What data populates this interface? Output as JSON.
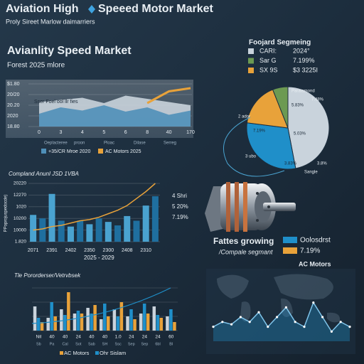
{
  "header": {
    "title": "Aviation High",
    "title_2": "Speeed Motor Market",
    "subtitle": "Proly Sireet Marlow daimarriers"
  },
  "section": {
    "title": "Avianlity Speed Market",
    "subtitle": "Forest 2025 mlore"
  },
  "segment": {
    "title": "Fattes growing",
    "subtitle": "/Compale segmant",
    "legend": [
      {
        "label": "Oolosdrst",
        "color": "#1f8fc9"
      },
      {
        "label": "7.19%",
        "color": "#e8a23a"
      }
    ],
    "note": "AC Motors"
  },
  "chart_data": [
    {
      "type": "area",
      "annotation": "Sser Foel ool llr fies",
      "categories": [
        "0",
        "3",
        "4",
        "5",
        "6",
        "8",
        "40",
        "170"
      ],
      "sublabels": [
        "Oeplacteree",
        "proon",
        "Ploac",
        "Dilase",
        "Serreg"
      ],
      "series": [
        {
          "type": "area",
          "color": "#c9d3dc",
          "values": [
            2.3,
            2.5,
            2.7,
            2.2,
            2.9,
            2.6,
            2.3,
            2.0
          ]
        },
        {
          "type": "area",
          "name": "+35/CR Mroe 2020",
          "color": "#4f8fb8",
          "values": [
            1.2,
            1.8,
            1.5,
            2.0,
            1.4,
            1.8,
            1.1,
            1.5
          ]
        },
        {
          "type": "line",
          "name": "AC Motors 2025",
          "color": "#e8a23a",
          "values": [
            null,
            null,
            null,
            null,
            null,
            2.2,
            3.3,
            3.6
          ]
        }
      ],
      "ylim": [
        0,
        4
      ],
      "yticks": [
        {
          "value": 0,
          "label": "18.80"
        },
        {
          "value": 1,
          "label": "2020"
        },
        {
          "value": 2,
          "label": "20.20"
        },
        {
          "value": 3,
          "label": "20/20"
        },
        {
          "value": 4,
          "label": "$1.80"
        }
      ]
    },
    {
      "type": "pie",
      "title": "Foojard Segmeing",
      "legend": [
        {
          "label": "CARI:",
          "value_text": "2024°",
          "color": "#c9d3dc"
        },
        {
          "label": "Sar G",
          "value_text": "7.199%",
          "color": "#6c9a52"
        },
        {
          "label": "SX 9S",
          "value_text": "$3 3225I",
          "color": "#e8a23a"
        }
      ],
      "values": [
        47,
        30,
        17,
        6
      ],
      "colors": [
        "#c9d3dc",
        "#1f8fc9",
        "#e8a23a",
        "#6c9a52"
      ],
      "annotations": [
        "Paratamond",
        "7.48%",
        "5.83%",
        "5.03%",
        "7.19%",
        "3.83%",
        "3.8%",
        "2 ador",
        "3 ubo",
        "Sangle"
      ]
    },
    {
      "type": "bar_line",
      "title": "Compland Anunl JSD 1VBA",
      "ylabel": "PPoprojuspedocde)",
      "xsub": "2025 - 2029",
      "categories": [
        "2071",
        null,
        "2391",
        null,
        "2402",
        null,
        "2350",
        null,
        "2300",
        null,
        "2408",
        null,
        "2310",
        null
      ],
      "values": [
        2.3,
        2.0,
        4.1,
        1.8,
        1.3,
        1.8,
        1.5,
        2.0,
        1.7,
        1.4,
        2.2,
        1.8,
        3.1,
        3.9
      ],
      "colors": [
        "#4aa3d0",
        "#1f6f9f"
      ],
      "line": {
        "color": "#e8a23a",
        "values": [
          1.0,
          1.1,
          1.3,
          1.4,
          1.6,
          1.8,
          1.9,
          2.1,
          2.4,
          2.7,
          3.1,
          3.7,
          4.3,
          5.0
        ]
      },
      "notes": [
        "4 Shri",
        "5 20%",
        "7.19%"
      ],
      "ylim": [
        0,
        5
      ],
      "yticks": [
        {
          "value": 0,
          "label": "1.820"
        },
        {
          "value": 1,
          "label": "10000"
        },
        {
          "value": 2,
          "label": "10200"
        },
        {
          "value": 3,
          "label": "1020"
        },
        {
          "value": 4,
          "label": "12270"
        },
        {
          "value": 5,
          "label": "20220"
        }
      ],
      "grid": true
    },
    {
      "type": "grouped_bar",
      "title": "Tle Pororderser/Vetrvbsek",
      "categories": [
        "Nil",
        "40",
        "40",
        "24",
        "40",
        "40",
        "1.0",
        "24",
        "24",
        "24",
        "60"
      ],
      "sublabels": [
        "Sb",
        "Pa",
        "Cal",
        "Sot",
        "Sab",
        "SH",
        "Ssc",
        "Sep",
        "Sep",
        "6bl",
        "Bl"
      ],
      "series": [
        {
          "color": "#c9d3dc",
          "values": [
            1.7,
            0.9,
            1.5,
            1.2,
            1.6,
            0.8,
            1.5,
            1.0,
            1.2,
            1.7,
            1.0
          ]
        },
        {
          "name": "Ohr Sislam",
          "color": "#1f8fc9",
          "values": [
            0.9,
            2.0,
            1.1,
            1.4,
            1.2,
            1.9,
            1.0,
            1.5,
            1.9,
            1.1,
            1.5
          ]
        },
        {
          "name": "AC Motors",
          "color": "#e8a23a",
          "values": [
            0.6,
            1.0,
            2.7,
            1.2,
            1.8,
            1.0,
            2.0,
            0.8,
            1.2,
            0.9,
            0.6
          ]
        }
      ],
      "ylim": [
        0,
        3
      ]
    },
    {
      "type": "line",
      "color": "#7fc4ea",
      "values": [
        3,
        4,
        3.5,
        5,
        4,
        6,
        3,
        5,
        7,
        4,
        3,
        8,
        5,
        2,
        4,
        3
      ],
      "ylim": [
        0,
        10
      ]
    }
  ]
}
